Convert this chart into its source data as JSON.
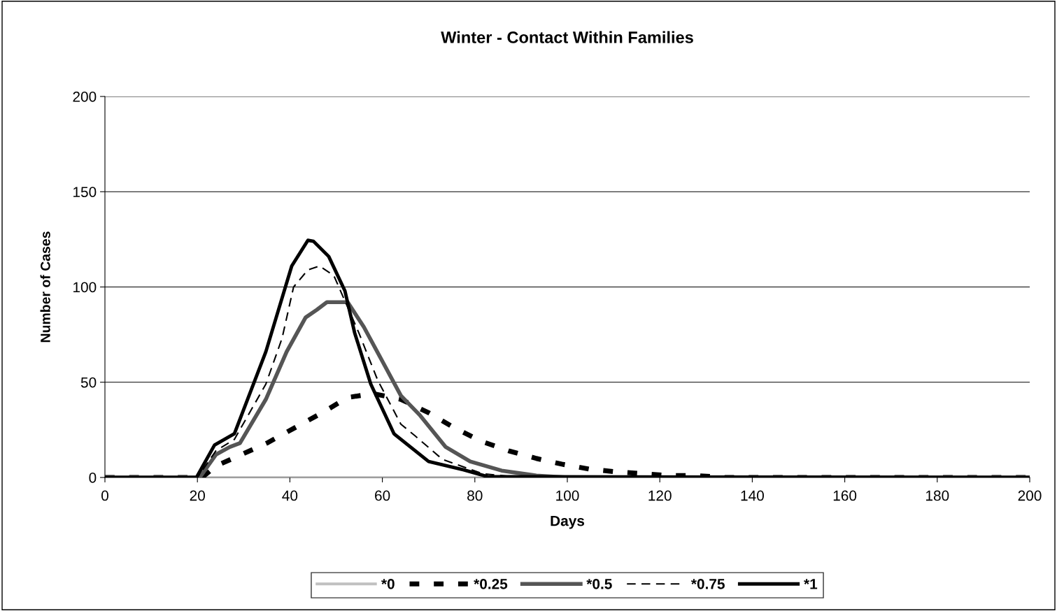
{
  "chart_data": {
    "type": "line",
    "title": "Winter - Contact Within Families",
    "xlabel": "Days",
    "ylabel": "Number of Cases",
    "xlim": [
      0,
      200
    ],
    "xticks": [
      0,
      20,
      40,
      60,
      80,
      100,
      120,
      140,
      160,
      180,
      200
    ],
    "ylim": [
      0,
      200
    ],
    "yticks": [
      0,
      50,
      100,
      150,
      200
    ],
    "grid": "y",
    "legend": "bottom",
    "marker": "none",
    "series": [
      {
        "name": "*0",
        "color": "#c0c0c0",
        "line_style": "solid",
        "x": [
          0,
          200
        ],
        "values": [
          0,
          0
        ]
      },
      {
        "name": "*0.25",
        "color": "#000000",
        "line_style": "dashed",
        "x": [
          0,
          21,
          24,
          29.5,
          35,
          41,
          47,
          52.5,
          58,
          64,
          70,
          75.6,
          81.4,
          87.3,
          93.3,
          98.8,
          104.7,
          110.4,
          122,
          128,
          134,
          200
        ],
        "values": [
          0,
          0,
          6,
          12,
          18,
          26,
          34,
          42,
          44,
          41,
          34,
          26,
          19,
          14,
          10,
          7,
          4.4,
          3,
          1,
          1,
          0,
          0
        ]
      },
      {
        "name": "*0.5",
        "color": "#555555",
        "line_style": "solid",
        "x": [
          0,
          20.5,
          24,
          27,
          29.2,
          34.8,
          39.3,
          43.4,
          45.8,
          48,
          52.5,
          56,
          60,
          64,
          68,
          73.7,
          79,
          85.8,
          93.3,
          100,
          200
        ],
        "values": [
          0,
          0,
          12,
          16,
          18,
          41,
          66,
          84,
          88,
          92,
          92,
          79,
          61,
          43,
          33,
          16,
          8.4,
          3.6,
          1,
          0,
          0
        ]
      },
      {
        "name": "*0.75",
        "color": "#000000",
        "line_style": "dashed",
        "x": [
          0,
          20,
          24,
          28,
          34.8,
          38.3,
          40.8,
          43.9,
          46.4,
          49.5,
          54.9,
          59,
          64,
          67,
          73,
          81.7,
          90,
          200
        ],
        "values": [
          0,
          0,
          14,
          20,
          49,
          73,
          100,
          109,
          111,
          106,
          76,
          51,
          28,
          22,
          9.5,
          2,
          0,
          0
        ]
      },
      {
        "name": "*1",
        "color": "#000000",
        "line_style": "solid",
        "x": [
          0,
          19.8,
          23.7,
          28,
          34.8,
          40.4,
          43.9,
          45.1,
          48.4,
          51.9,
          54,
          57.5,
          62.5,
          63,
          70,
          77.6,
          82.8,
          200
        ],
        "values": [
          0,
          0,
          17,
          23,
          66,
          111,
          124.5,
          124,
          116,
          98,
          76,
          49,
          23,
          22,
          8.4,
          4,
          0.4,
          0
        ]
      }
    ]
  }
}
